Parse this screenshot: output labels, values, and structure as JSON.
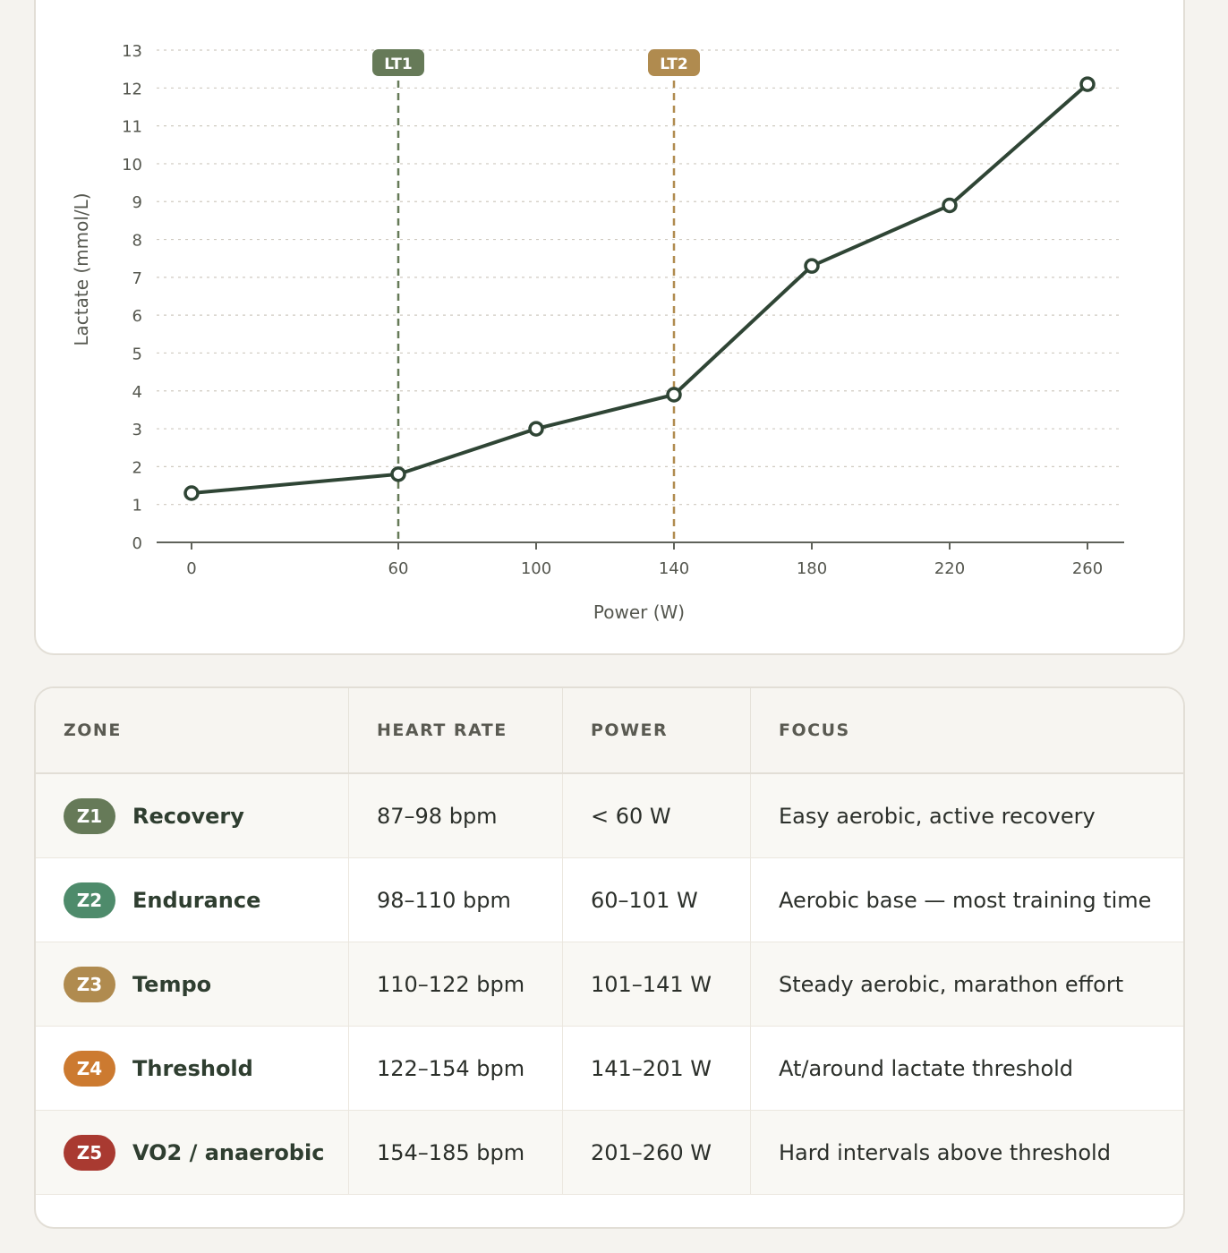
{
  "chart_data": {
    "type": "line",
    "xlabel": "Power (W)",
    "ylabel": "Lactate (mmol/L)",
    "x_ticks": [
      "0",
      "60",
      "100",
      "140",
      "180",
      "220",
      "260"
    ],
    "y_ticks": [
      "0",
      "1",
      "2",
      "3",
      "4",
      "5",
      "6",
      "7",
      "8",
      "9",
      "10",
      "11",
      "12",
      "13"
    ],
    "ylim": [
      0,
      13
    ],
    "grid": "horizontal dashed",
    "series": [
      {
        "x": [
          0,
          60,
          100,
          140,
          180,
          220,
          260
        ],
        "y": [
          1.3,
          1.8,
          3.0,
          3.9,
          7.3,
          8.9,
          12.1
        ],
        "color": "#2f4535"
      }
    ],
    "thresholds": [
      {
        "label": "LT1",
        "x": 60,
        "color": "#667a58"
      },
      {
        "label": "LT2",
        "x": 140,
        "color": "#b08b4f"
      }
    ]
  },
  "table": {
    "headers": [
      "ZONE",
      "HEART RATE",
      "POWER",
      "FOCUS"
    ],
    "rows": [
      {
        "code": "Z1",
        "name": "Recovery",
        "color": "#667a58",
        "hr": "87–98 bpm",
        "power": "< 60 W",
        "focus": "Easy aerobic, active recovery"
      },
      {
        "code": "Z2",
        "name": "Endurance",
        "color": "#4e8b6b",
        "hr": "98–110 bpm",
        "power": "60–101 W",
        "focus": "Aerobic base — most training time"
      },
      {
        "code": "Z3",
        "name": "Tempo",
        "color": "#b08b4f",
        "hr": "110–122 bpm",
        "power": "101–141 W",
        "focus": "Steady aerobic, marathon effort"
      },
      {
        "code": "Z4",
        "name": "Threshold",
        "color": "#cc7a30",
        "hr": "122–154 bpm",
        "power": "141–201 W",
        "focus": "At/around lactate threshold"
      },
      {
        "code": "Z5",
        "name": "VO2 / anaerobic",
        "color": "#a93a31",
        "hr": "154–185 bpm",
        "power": "201–260 W",
        "focus": "Hard intervals above threshold"
      }
    ]
  }
}
